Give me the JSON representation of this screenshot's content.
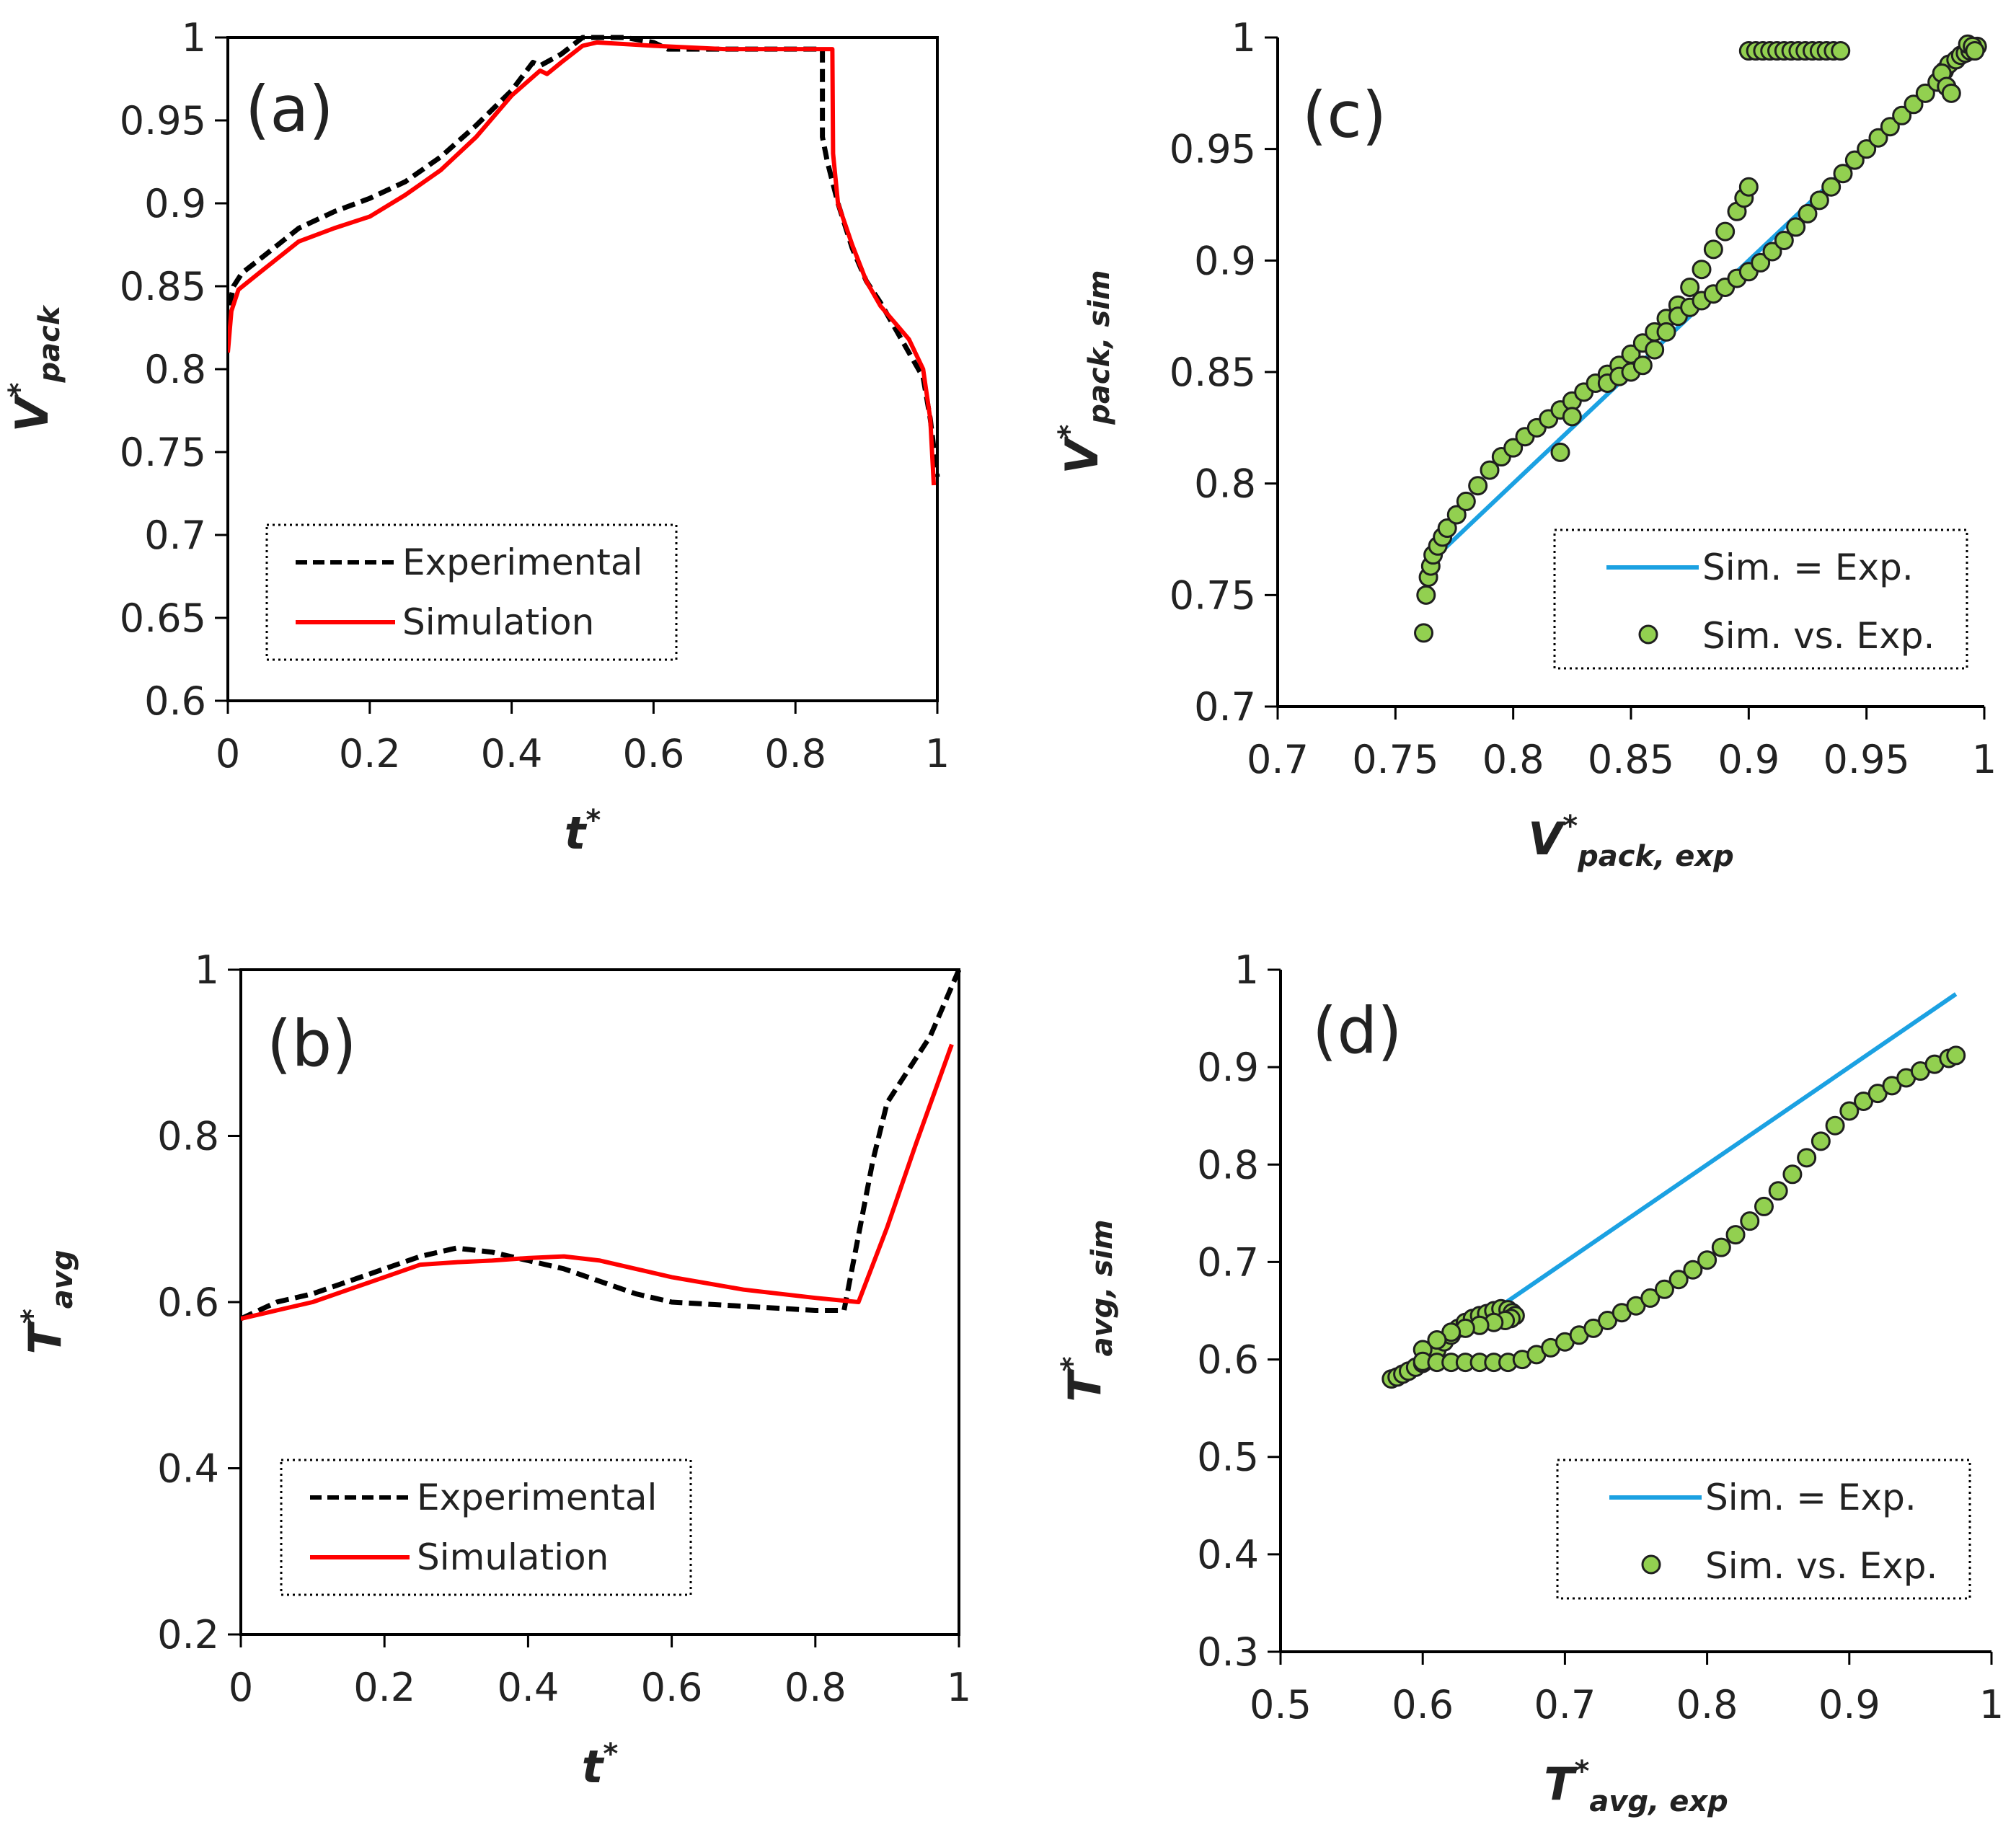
{
  "colors": {
    "experimental": "#000000",
    "simulation": "#ff0000",
    "identity_line": "#1ba1e2",
    "marker_fill": "#92d050",
    "marker_edge": "#1f1f1f",
    "axis": "#000000"
  },
  "chart_data": [
    {
      "id": "a",
      "type": "line",
      "panel_label": "(a)",
      "xlabel_main": "t",
      "xlabel_sup": "*",
      "xlabel_sub": "",
      "ylabel_main": "V",
      "ylabel_sup": "*",
      "ylabel_sub": "pack",
      "xlim": [
        0,
        1
      ],
      "ylim": [
        0.6,
        1
      ],
      "xticks": [
        "0",
        "0.2",
        "0.4",
        "0.6",
        "0.8",
        "1"
      ],
      "yticks": [
        "0.6",
        "0.65",
        "0.7",
        "0.75",
        "0.8",
        "0.85",
        "0.9",
        "0.95",
        "1"
      ],
      "legend_position": "bottom-left",
      "series": [
        {
          "name": "Experimental",
          "style": "dashed",
          "color": "#000000",
          "x": [
            0.0,
            0.003,
            0.008,
            0.02,
            0.05,
            0.1,
            0.15,
            0.2,
            0.25,
            0.3,
            0.35,
            0.4,
            0.43,
            0.44,
            0.47,
            0.5,
            0.56,
            0.6,
            0.62,
            0.7,
            0.8,
            0.838,
            0.838,
            0.845,
            0.86,
            0.88,
            0.9,
            0.92,
            0.94,
            0.96,
            0.98,
            0.99,
            1.0
          ],
          "y": [
            0.815,
            0.84,
            0.85,
            0.858,
            0.868,
            0.885,
            0.895,
            0.903,
            0.913,
            0.928,
            0.947,
            0.968,
            0.985,
            0.983,
            0.99,
            1.0,
            1.0,
            0.997,
            0.993,
            0.993,
            0.993,
            0.993,
            0.94,
            0.925,
            0.9,
            0.873,
            0.853,
            0.84,
            0.825,
            0.81,
            0.795,
            0.77,
            0.735
          ]
        },
        {
          "name": "Simulation",
          "style": "solid",
          "color": "#ff0000",
          "x": [
            0.0,
            0.005,
            0.015,
            0.05,
            0.1,
            0.15,
            0.2,
            0.25,
            0.3,
            0.35,
            0.4,
            0.44,
            0.45,
            0.47,
            0.5,
            0.52,
            0.6,
            0.7,
            0.8,
            0.852,
            0.853,
            0.86,
            0.88,
            0.9,
            0.92,
            0.94,
            0.96,
            0.98,
            0.99,
            0.995
          ],
          "y": [
            0.81,
            0.835,
            0.848,
            0.86,
            0.877,
            0.885,
            0.892,
            0.905,
            0.92,
            0.94,
            0.965,
            0.98,
            0.978,
            0.985,
            0.995,
            0.997,
            0.995,
            0.993,
            0.993,
            0.993,
            0.93,
            0.9,
            0.875,
            0.853,
            0.838,
            0.828,
            0.818,
            0.8,
            0.77,
            0.73
          ]
        }
      ]
    },
    {
      "id": "b",
      "type": "line",
      "panel_label": "(b)",
      "xlabel_main": "t",
      "xlabel_sup": "*",
      "xlabel_sub": "",
      "ylabel_main": "T",
      "ylabel_sup": "*",
      "ylabel_sub": "avg",
      "xlim": [
        0,
        1
      ],
      "ylim": [
        0.2,
        1
      ],
      "xticks": [
        "0",
        "0.2",
        "0.4",
        "0.6",
        "0.8",
        "1"
      ],
      "yticks": [
        "0.2",
        "0.4",
        "0.6",
        "0.8",
        "1"
      ],
      "legend_position": "bottom-left",
      "series": [
        {
          "name": "Experimental",
          "style": "dashed",
          "color": "#000000",
          "x": [
            0.0,
            0.05,
            0.1,
            0.15,
            0.2,
            0.25,
            0.3,
            0.35,
            0.4,
            0.45,
            0.5,
            0.55,
            0.6,
            0.7,
            0.8,
            0.84,
            0.86,
            0.88,
            0.9,
            0.93,
            0.96,
            0.98,
            1.0
          ],
          "y": [
            0.58,
            0.6,
            0.61,
            0.625,
            0.64,
            0.655,
            0.665,
            0.66,
            0.65,
            0.64,
            0.625,
            0.61,
            0.6,
            0.595,
            0.59,
            0.59,
            0.68,
            0.77,
            0.84,
            0.88,
            0.92,
            0.96,
            1.0
          ]
        },
        {
          "name": "Simulation",
          "style": "solid",
          "color": "#ff0000",
          "x": [
            0.0,
            0.05,
            0.1,
            0.15,
            0.2,
            0.25,
            0.3,
            0.35,
            0.4,
            0.45,
            0.5,
            0.55,
            0.6,
            0.7,
            0.8,
            0.86,
            0.9,
            0.94,
            0.99
          ],
          "y": [
            0.58,
            0.59,
            0.6,
            0.615,
            0.63,
            0.645,
            0.648,
            0.65,
            0.653,
            0.655,
            0.65,
            0.64,
            0.63,
            0.615,
            0.605,
            0.6,
            0.69,
            0.79,
            0.91
          ]
        }
      ]
    },
    {
      "id": "c",
      "type": "scatter",
      "panel_label": "(c)",
      "xlabel_main": "V",
      "xlabel_sup": "*",
      "xlabel_sub": "pack, exp",
      "ylabel_main": "V",
      "ylabel_sup": "*",
      "ylabel_sub": "pack, sim",
      "xlim": [
        0.7,
        1
      ],
      "ylim": [
        0.7,
        1
      ],
      "xticks": [
        "0.7",
        "0.75",
        "0.8",
        "0.85",
        "0.9",
        "0.95",
        "1"
      ],
      "yticks": [
        "0.7",
        "0.75",
        "0.8",
        "0.85",
        "0.9",
        "0.95",
        "1"
      ],
      "legend_position": "bottom-right",
      "identity": {
        "name": "Sim. = Exp.",
        "from": [
          0.768,
          0.768
        ],
        "to": [
          0.997,
          0.997
        ]
      },
      "scatter_name": "Sim. vs. Exp.",
      "points": [
        [
          0.762,
          0.733
        ],
        [
          0.763,
          0.75
        ],
        [
          0.764,
          0.758
        ],
        [
          0.765,
          0.763
        ],
        [
          0.766,
          0.768
        ],
        [
          0.768,
          0.772
        ],
        [
          0.77,
          0.776
        ],
        [
          0.772,
          0.78
        ],
        [
          0.776,
          0.786
        ],
        [
          0.78,
          0.792
        ],
        [
          0.785,
          0.799
        ],
        [
          0.79,
          0.806
        ],
        [
          0.795,
          0.812
        ],
        [
          0.8,
          0.816
        ],
        [
          0.805,
          0.821
        ],
        [
          0.81,
          0.825
        ],
        [
          0.815,
          0.829
        ],
        [
          0.82,
          0.833
        ],
        [
          0.825,
          0.837
        ],
        [
          0.83,
          0.841
        ],
        [
          0.835,
          0.845
        ],
        [
          0.84,
          0.849
        ],
        [
          0.845,
          0.853
        ],
        [
          0.85,
          0.858
        ],
        [
          0.855,
          0.863
        ],
        [
          0.86,
          0.868
        ],
        [
          0.865,
          0.874
        ],
        [
          0.87,
          0.88
        ],
        [
          0.875,
          0.888
        ],
        [
          0.88,
          0.896
        ],
        [
          0.885,
          0.905
        ],
        [
          0.89,
          0.913
        ],
        [
          0.895,
          0.922
        ],
        [
          0.898,
          0.928
        ],
        [
          0.9,
          0.933
        ],
        [
          0.84,
          0.845
        ],
        [
          0.845,
          0.848
        ],
        [
          0.85,
          0.85
        ],
        [
          0.855,
          0.853
        ],
        [
          0.86,
          0.86
        ],
        [
          0.865,
          0.868
        ],
        [
          0.87,
          0.875
        ],
        [
          0.875,
          0.879
        ],
        [
          0.88,
          0.882
        ],
        [
          0.885,
          0.885
        ],
        [
          0.89,
          0.888
        ],
        [
          0.895,
          0.892
        ],
        [
          0.9,
          0.895
        ],
        [
          0.905,
          0.899
        ],
        [
          0.91,
          0.904
        ],
        [
          0.915,
          0.909
        ],
        [
          0.92,
          0.915
        ],
        [
          0.925,
          0.921
        ],
        [
          0.93,
          0.927
        ],
        [
          0.935,
          0.933
        ],
        [
          0.94,
          0.939
        ],
        [
          0.945,
          0.945
        ],
        [
          0.95,
          0.95
        ],
        [
          0.955,
          0.955
        ],
        [
          0.96,
          0.96
        ],
        [
          0.965,
          0.965
        ],
        [
          0.97,
          0.97
        ],
        [
          0.975,
          0.975
        ],
        [
          0.98,
          0.98
        ],
        [
          0.983,
          0.985
        ],
        [
          0.985,
          0.988
        ],
        [
          0.988,
          0.99
        ],
        [
          0.99,
          0.992
        ],
        [
          0.992,
          0.993
        ],
        [
          0.994,
          0.994
        ],
        [
          0.996,
          0.995
        ],
        [
          0.997,
          0.996
        ],
        [
          0.82,
          0.814
        ],
        [
          0.825,
          0.83
        ],
        [
          0.9,
          0.994
        ],
        [
          0.903,
          0.994
        ],
        [
          0.906,
          0.994
        ],
        [
          0.909,
          0.994
        ],
        [
          0.912,
          0.994
        ],
        [
          0.915,
          0.994
        ],
        [
          0.918,
          0.994
        ],
        [
          0.921,
          0.994
        ],
        [
          0.924,
          0.994
        ],
        [
          0.927,
          0.994
        ],
        [
          0.93,
          0.994
        ],
        [
          0.933,
          0.994
        ],
        [
          0.936,
          0.994
        ],
        [
          0.939,
          0.994
        ],
        [
          0.982,
          0.984
        ],
        [
          0.984,
          0.978
        ],
        [
          0.986,
          0.975
        ],
        [
          0.993,
          0.997
        ],
        [
          0.995,
          0.996
        ],
        [
          0.996,
          0.994
        ]
      ]
    },
    {
      "id": "d",
      "type": "scatter",
      "panel_label": "(d)",
      "xlabel_main": "T",
      "xlabel_sup": "*",
      "xlabel_sub": "avg, exp",
      "ylabel_main": "T",
      "ylabel_sup": "*",
      "ylabel_sub": "avg, sim",
      "xlim": [
        0.5,
        1
      ],
      "ylim": [
        0.3,
        1
      ],
      "xticks": [
        "0.5",
        "0.6",
        "0.7",
        "0.8",
        "0.9",
        "1"
      ],
      "yticks": [
        "0.3",
        "0.4",
        "0.5",
        "0.6",
        "0.7",
        "0.8",
        "0.9",
        "1"
      ],
      "legend_position": "bottom-right",
      "identity": {
        "name": "Sim. = Exp.",
        "from": [
          0.58,
          0.58
        ],
        "to": [
          0.975,
          0.975
        ]
      },
      "scatter_name": "Sim. vs. Exp.",
      "points": [
        [
          0.578,
          0.58
        ],
        [
          0.582,
          0.582
        ],
        [
          0.586,
          0.585
        ],
        [
          0.59,
          0.588
        ],
        [
          0.595,
          0.592
        ],
        [
          0.6,
          0.596
        ],
        [
          0.605,
          0.602
        ],
        [
          0.61,
          0.61
        ],
        [
          0.615,
          0.618
        ],
        [
          0.62,
          0.625
        ],
        [
          0.625,
          0.632
        ],
        [
          0.63,
          0.638
        ],
        [
          0.635,
          0.642
        ],
        [
          0.64,
          0.645
        ],
        [
          0.645,
          0.647
        ],
        [
          0.65,
          0.65
        ],
        [
          0.655,
          0.652
        ],
        [
          0.66,
          0.651
        ],
        [
          0.663,
          0.648
        ],
        [
          0.665,
          0.645
        ],
        [
          0.662,
          0.642
        ],
        [
          0.658,
          0.64
        ],
        [
          0.65,
          0.638
        ],
        [
          0.64,
          0.635
        ],
        [
          0.63,
          0.632
        ],
        [
          0.62,
          0.628
        ],
        [
          0.61,
          0.62
        ],
        [
          0.6,
          0.61
        ],
        [
          0.6,
          0.598
        ],
        [
          0.61,
          0.597
        ],
        [
          0.62,
          0.597
        ],
        [
          0.63,
          0.597
        ],
        [
          0.64,
          0.597
        ],
        [
          0.65,
          0.597
        ],
        [
          0.66,
          0.597
        ],
        [
          0.67,
          0.6
        ],
        [
          0.68,
          0.605
        ],
        [
          0.69,
          0.612
        ],
        [
          0.7,
          0.618
        ],
        [
          0.71,
          0.625
        ],
        [
          0.72,
          0.632
        ],
        [
          0.73,
          0.64
        ],
        [
          0.74,
          0.648
        ],
        [
          0.75,
          0.655
        ],
        [
          0.76,
          0.663
        ],
        [
          0.77,
          0.672
        ],
        [
          0.78,
          0.682
        ],
        [
          0.79,
          0.692
        ],
        [
          0.8,
          0.702
        ],
        [
          0.81,
          0.715
        ],
        [
          0.82,
          0.728
        ],
        [
          0.83,
          0.742
        ],
        [
          0.84,
          0.757
        ],
        [
          0.85,
          0.773
        ],
        [
          0.86,
          0.79
        ],
        [
          0.87,
          0.807
        ],
        [
          0.88,
          0.824
        ],
        [
          0.89,
          0.84
        ],
        [
          0.9,
          0.855
        ],
        [
          0.91,
          0.865
        ],
        [
          0.92,
          0.873
        ],
        [
          0.93,
          0.881
        ],
        [
          0.94,
          0.889
        ],
        [
          0.95,
          0.896
        ],
        [
          0.96,
          0.903
        ],
        [
          0.97,
          0.909
        ],
        [
          0.975,
          0.912
        ]
      ]
    }
  ],
  "legends": {
    "a": {
      "experimental": "Experimental",
      "simulation": "Simulation"
    },
    "b": {
      "experimental": "Experimental",
      "simulation": "Simulation"
    },
    "c": {
      "identity": "Sim. = Exp.",
      "scatter": "Sim. vs. Exp."
    },
    "d": {
      "identity": "Sim. = Exp.",
      "scatter": "Sim. vs. Exp."
    }
  }
}
